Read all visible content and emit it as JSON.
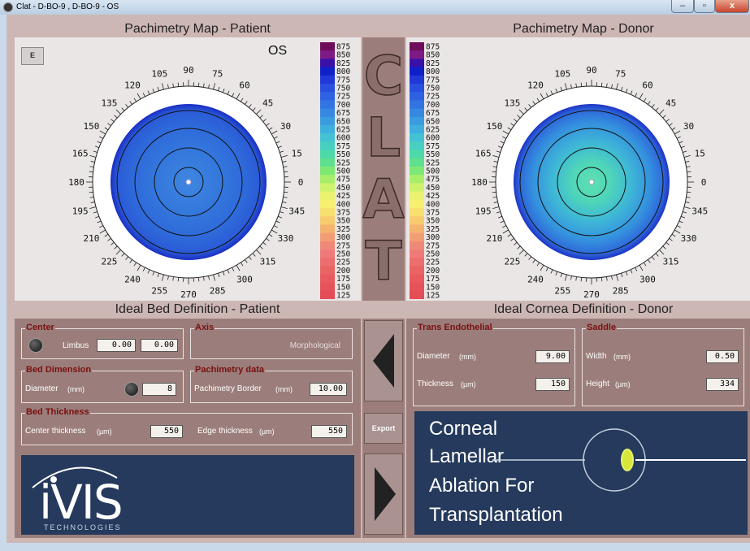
{
  "window": {
    "title": "Clat - D-BO-9 , D-BO-9 - OS",
    "min": "–",
    "max": "▫",
    "close": "x"
  },
  "patient_map": {
    "title": "Pachimetry Map - Patient",
    "e_button": "E",
    "eye": "OS"
  },
  "donor_map": {
    "title": "Pachimetry Map - Donor"
  },
  "angle_labels": [
    "0",
    "15",
    "30",
    "45",
    "60",
    "75",
    "90",
    "105",
    "120",
    "135",
    "150",
    "165",
    "180",
    "195",
    "210",
    "225",
    "240",
    "255",
    "270",
    "285",
    "300",
    "315",
    "330",
    "345"
  ],
  "scale": {
    "labels": [
      "875",
      "850",
      "825",
      "800",
      "775",
      "750",
      "725",
      "700",
      "675",
      "650",
      "625",
      "600",
      "575",
      "550",
      "525",
      "500",
      "475",
      "450",
      "425",
      "400",
      "375",
      "350",
      "325",
      "300",
      "275",
      "250",
      "225",
      "200",
      "175",
      "150",
      "125"
    ],
    "colors": [
      "#6f0d5b",
      "#7d1a86",
      "#3a10a8",
      "#1020c8",
      "#1f38d6",
      "#2a4ee0",
      "#2f62e2",
      "#3274e2",
      "#3688e0",
      "#3a9ce0",
      "#3fb0de",
      "#44c2d4",
      "#47cfc0",
      "#4ed9a8",
      "#5ee08e",
      "#7ee874",
      "#a8ee6a",
      "#cdf26c",
      "#eaf370",
      "#f6f070",
      "#f8e06e",
      "#f6cc6e",
      "#f4b470",
      "#f29e74",
      "#f08a78",
      "#ee7a7a",
      "#ec6e6e",
      "#ea6464",
      "#e85a5e",
      "#e6525a",
      "#e44c56"
    ]
  },
  "clat_letters": [
    "C",
    "L",
    "A",
    "T"
  ],
  "bed": {
    "title": "Ideal Bed Definition - Patient",
    "center": {
      "legend": "Center",
      "limbus_label": "Limbus",
      "x": "0.00",
      "y": "0.00"
    },
    "axis": {
      "legend": "Axis",
      "value": "Morphological"
    },
    "dimension": {
      "legend": "Bed Dimension",
      "diameter_label": "Diameter",
      "unit": "(mm)",
      "value": "8"
    },
    "pachy": {
      "legend": "Pachimetry data",
      "border_label": "Pachimetry Border",
      "unit": "(mm)",
      "value": "10.00"
    },
    "thickness": {
      "legend": "Bed Thickness",
      "center_label": "Center thickness",
      "center_unit": "(µm)",
      "center_value": "550",
      "edge_label": "Edge thickness",
      "edge_unit": "(µm)",
      "edge_value": "550"
    }
  },
  "cornea": {
    "title": "Ideal Cornea Definition - Donor",
    "trans": {
      "legend": "Trans Endothelial",
      "diameter_label": "Diameter",
      "diameter_unit": "(mm)",
      "diameter_value": "9.00",
      "thickness_label": "Thickness",
      "thickness_unit": "(µm)",
      "thickness_value": "150"
    },
    "saddle": {
      "legend": "Saddle",
      "width_label": "Width",
      "width_unit": "(mm)",
      "width_value": "0.50",
      "height_label": "Height",
      "height_unit": "(µm)",
      "height_value": "334"
    }
  },
  "nav": {
    "export_label": "Export"
  },
  "logo": {
    "brand": "iVIS",
    "sub": "TECHNOLOGIES"
  },
  "clat_banner": {
    "line1": "Corneal",
    "line2": "Lamellar",
    "line3": "Ablation For",
    "line4": "Transplantation"
  }
}
